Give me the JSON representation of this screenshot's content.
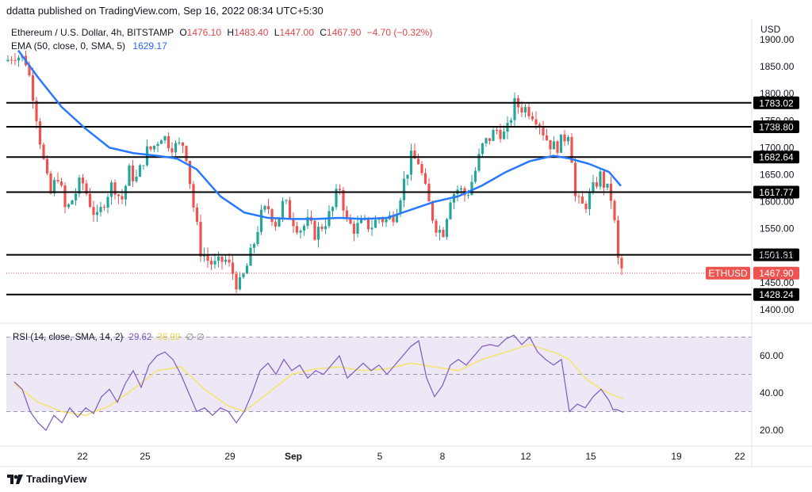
{
  "publish_line": "ddatta published on TradingView.com, Sep 16, 2022 08:34 UTC+5:30",
  "currency": "USD",
  "legend": {
    "symbol": "Ethereum / U.S. Dollar, 4h, BITSTAMP",
    "o_label": "O",
    "o": "1476.10",
    "h_label": "H",
    "h": "1483.40",
    "l_label": "L",
    "l": "1447.00",
    "c_label": "C",
    "c": "1467.90",
    "change": "−4.70 (−0.32%)",
    "ema_label": "EMA (50, close, 0, SMA, 5)",
    "ema_value": "1629.17"
  },
  "rsi_legend": {
    "label": "RSI (14, close, SMA, 14, 2)",
    "rsi": "29.62",
    "ma": "36.99",
    "extra": "∅ ∅"
  },
  "brand": "TradingView",
  "colors": {
    "up": "#26a69a",
    "down": "#ef5350",
    "ema": "#2979ff",
    "rsi": "#7e57c2",
    "rsi_ma": "#f5e46b",
    "rsi_band": "#ede7f6"
  },
  "chart_data": [
    {
      "type": "candlestick",
      "symbol": "ETHUSD",
      "last_price": "1467.90",
      "ylim": [
        1390,
        1905
      ],
      "y_ticks": [
        "1900.00",
        "1850.00",
        "1800.00",
        "1750.00",
        "1700.00",
        "1650.00",
        "1600.00",
        "1550.00",
        "1500.00",
        "1450.00",
        "1400.00"
      ],
      "x_ticks": [
        "22",
        "25",
        "29",
        "Sep",
        "5",
        "8",
        "12",
        "15",
        "19",
        "22"
      ],
      "horizontal_levels": [
        "1783.02",
        "1738.80",
        "1682.64",
        "1617.77",
        "1501.81",
        "1428.24"
      ],
      "close_path": [
        [
          0,
          1860
        ],
        [
          10,
          1875
        ],
        [
          25,
          1860
        ],
        [
          35,
          1790
        ],
        [
          45,
          1690
        ],
        [
          55,
          1610
        ],
        [
          65,
          1650
        ],
        [
          75,
          1580
        ],
        [
          85,
          1610
        ],
        [
          95,
          1640
        ],
        [
          105,
          1600
        ],
        [
          115,
          1565
        ],
        [
          125,
          1610
        ],
        [
          135,
          1635
        ],
        [
          145,
          1600
        ],
        [
          155,
          1655
        ],
        [
          165,
          1640
        ],
        [
          175,
          1690
        ],
        [
          185,
          1700
        ],
        [
          195,
          1725
        ],
        [
          205,
          1710
        ],
        [
          215,
          1700
        ],
        [
          225,
          1710
        ],
        [
          235,
          1600
        ],
        [
          245,
          1510
        ],
        [
          255,
          1490
        ],
        [
          265,
          1480
        ],
        [
          275,
          1495
        ],
        [
          285,
          1470
        ],
        [
          293,
          1440
        ],
        [
          300,
          1465
        ],
        [
          310,
          1510
        ],
        [
          320,
          1570
        ],
        [
          330,
          1590
        ],
        [
          340,
          1560
        ],
        [
          350,
          1600
        ],
        [
          360,
          1570
        ],
        [
          370,
          1550
        ],
        [
          380,
          1560
        ],
        [
          390,
          1540
        ],
        [
          400,
          1560
        ],
        [
          410,
          1580
        ],
        [
          420,
          1630
        ],
        [
          430,
          1560
        ],
        [
          440,
          1550
        ],
        [
          450,
          1560
        ],
        [
          460,
          1555
        ],
        [
          470,
          1570
        ],
        [
          480,
          1565
        ],
        [
          490,
          1580
        ],
        [
          500,
          1630
        ],
        [
          510,
          1680
        ],
        [
          520,
          1675
        ],
        [
          530,
          1610
        ],
        [
          540,
          1560
        ],
        [
          550,
          1540
        ],
        [
          560,
          1610
        ],
        [
          570,
          1625
        ],
        [
          580,
          1610
        ],
        [
          590,
          1650
        ],
        [
          600,
          1700
        ],
        [
          610,
          1720
        ],
        [
          620,
          1735
        ],
        [
          630,
          1720
        ],
        [
          640,
          1780
        ],
        [
          650,
          1775
        ],
        [
          660,
          1770
        ],
        [
          670,
          1755
        ],
        [
          680,
          1720
        ],
        [
          690,
          1700
        ],
        [
          700,
          1710
        ],
        [
          710,
          1735
        ],
        [
          718,
          1600
        ],
        [
          728,
          1590
        ],
        [
          738,
          1615
        ],
        [
          748,
          1650
        ],
        [
          758,
          1620
        ],
        [
          765,
          1600
        ],
        [
          770,
          1495
        ],
        [
          778,
          1468
        ]
      ],
      "ema_path": [
        [
          15,
          1880
        ],
        [
          40,
          1830
        ],
        [
          70,
          1775
        ],
        [
          100,
          1735
        ],
        [
          130,
          1700
        ],
        [
          160,
          1690
        ],
        [
          190,
          1685
        ],
        [
          215,
          1680
        ],
        [
          240,
          1660
        ],
        [
          270,
          1610
        ],
        [
          300,
          1580
        ],
        [
          330,
          1570
        ],
        [
          360,
          1568
        ],
        [
          390,
          1568
        ],
        [
          420,
          1570
        ],
        [
          450,
          1568
        ],
        [
          480,
          1570
        ],
        [
          510,
          1585
        ],
        [
          540,
          1600
        ],
        [
          570,
          1610
        ],
        [
          600,
          1630
        ],
        [
          630,
          1655
        ],
        [
          660,
          1675
        ],
        [
          690,
          1685
        ],
        [
          710,
          1680
        ],
        [
          735,
          1670
        ],
        [
          760,
          1655
        ],
        [
          775,
          1629.17
        ]
      ]
    },
    {
      "type": "line",
      "name": "RSI",
      "ylim": [
        13,
        76
      ],
      "y_ticks": [
        "60.00",
        "40.00",
        "20.00"
      ],
      "band": [
        30,
        70
      ],
      "midline": 50,
      "rsi_path": [
        [
          10,
          46
        ],
        [
          20,
          42
        ],
        [
          30,
          30
        ],
        [
          40,
          24
        ],
        [
          50,
          20
        ],
        [
          60,
          28
        ],
        [
          70,
          24
        ],
        [
          80,
          32
        ],
        [
          90,
          27
        ],
        [
          100,
          32
        ],
        [
          110,
          29
        ],
        [
          120,
          38
        ],
        [
          130,
          42
        ],
        [
          140,
          35
        ],
        [
          150,
          45
        ],
        [
          160,
          52
        ],
        [
          170,
          43
        ],
        [
          180,
          55
        ],
        [
          190,
          60
        ],
        [
          200,
          62
        ],
        [
          210,
          58
        ],
        [
          220,
          50
        ],
        [
          230,
          40
        ],
        [
          240,
          30
        ],
        [
          250,
          32
        ],
        [
          260,
          28
        ],
        [
          270,
          32
        ],
        [
          280,
          30
        ],
        [
          290,
          24
        ],
        [
          300,
          30
        ],
        [
          310,
          40
        ],
        [
          320,
          52
        ],
        [
          330,
          56
        ],
        [
          340,
          50
        ],
        [
          350,
          58
        ],
        [
          360,
          52
        ],
        [
          370,
          55
        ],
        [
          380,
          48
        ],
        [
          390,
          52
        ],
        [
          400,
          50
        ],
        [
          410,
          55
        ],
        [
          420,
          60
        ],
        [
          430,
          48
        ],
        [
          440,
          52
        ],
        [
          450,
          56
        ],
        [
          460,
          52
        ],
        [
          470,
          55
        ],
        [
          480,
          50
        ],
        [
          490,
          55
        ],
        [
          500,
          60
        ],
        [
          510,
          65
        ],
        [
          520,
          68
        ],
        [
          530,
          48
        ],
        [
          540,
          38
        ],
        [
          550,
          44
        ],
        [
          560,
          55
        ],
        [
          570,
          58
        ],
        [
          580,
          55
        ],
        [
          590,
          60
        ],
        [
          600,
          65
        ],
        [
          610,
          66
        ],
        [
          620,
          65
        ],
        [
          630,
          69
        ],
        [
          640,
          71
        ],
        [
          650,
          66
        ],
        [
          660,
          70
        ],
        [
          670,
          62
        ],
        [
          680,
          58
        ],
        [
          690,
          55
        ],
        [
          700,
          58
        ],
        [
          710,
          30
        ],
        [
          720,
          34
        ],
        [
          730,
          32
        ],
        [
          740,
          38
        ],
        [
          750,
          42
        ],
        [
          760,
          36
        ],
        [
          765,
          31
        ],
        [
          770,
          31
        ],
        [
          778,
          29.62
        ]
      ],
      "rsi_ma_path": [
        [
          10,
          45
        ],
        [
          40,
          35
        ],
        [
          70,
          30
        ],
        [
          100,
          28
        ],
        [
          130,
          33
        ],
        [
          160,
          42
        ],
        [
          190,
          52
        ],
        [
          220,
          54
        ],
        [
          250,
          42
        ],
        [
          280,
          33
        ],
        [
          300,
          30
        ],
        [
          330,
          40
        ],
        [
          360,
          50
        ],
        [
          390,
          53
        ],
        [
          420,
          54
        ],
        [
          450,
          52
        ],
        [
          480,
          53
        ],
        [
          510,
          56
        ],
        [
          540,
          54
        ],
        [
          570,
          52
        ],
        [
          600,
          58
        ],
        [
          630,
          62
        ],
        [
          660,
          66
        ],
        [
          690,
          62
        ],
        [
          710,
          58
        ],
        [
          730,
          48
        ],
        [
          750,
          42
        ],
        [
          770,
          38
        ],
        [
          778,
          36.99
        ]
      ]
    }
  ]
}
